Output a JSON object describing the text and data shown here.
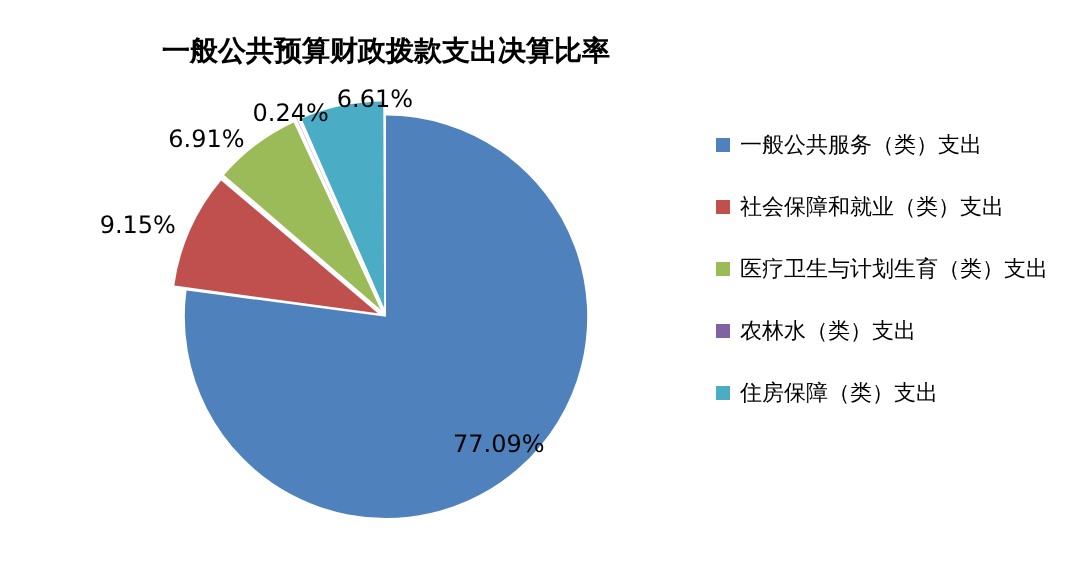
{
  "chart_data": {
    "type": "pie",
    "title": "一般公共预算财政拨款支出决算比率",
    "categories": [
      "一般公共服务（类）支出",
      "社会保障和就业（类）支出",
      "医疗卫生与计划生育（类）支出",
      "农林水（类）支出",
      "住房保障（类）支出"
    ],
    "values": [
      77.09,
      9.15,
      6.91,
      0.24,
      6.61
    ],
    "value_labels": [
      "77.09%",
      "9.15%",
      "6.91%",
      "0.24%",
      "6.61%"
    ],
    "colors": [
      "#4f81bd",
      "#c0504d",
      "#9bbb59",
      "#8064a2",
      "#4bacc6"
    ],
    "legend": "right"
  }
}
